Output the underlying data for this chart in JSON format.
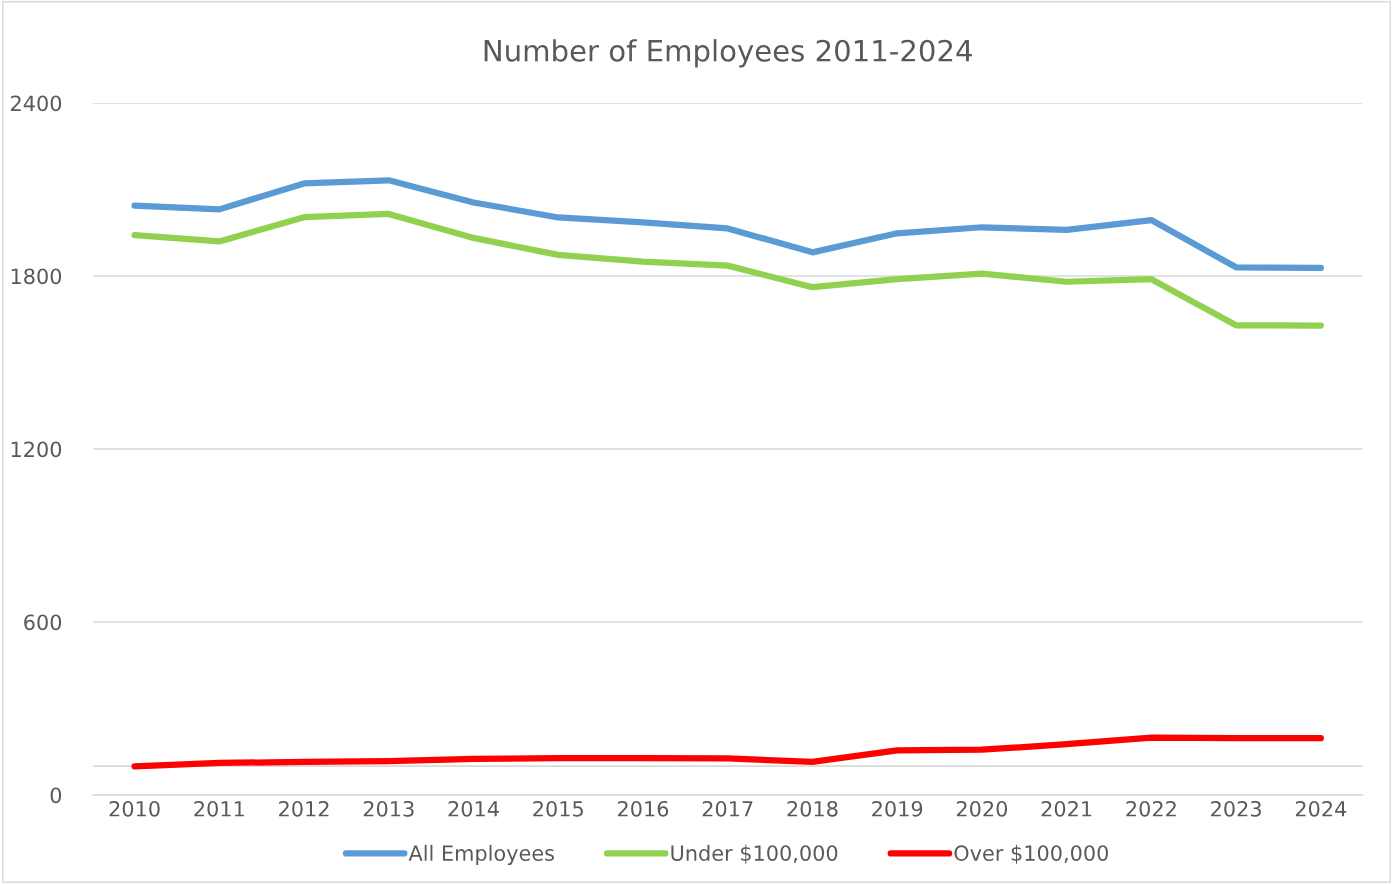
{
  "chart_data": {
    "type": "line",
    "title": "Number of Employees 2011-2024",
    "categories": [
      "2010",
      "2011",
      "2012",
      "2013",
      "2014",
      "2015",
      "2016",
      "2017",
      "2018",
      "2019",
      "2020",
      "2021",
      "2022",
      "2023",
      "2024"
    ],
    "series": [
      {
        "name": "All Employees",
        "color": "#5b9bd5",
        "values": [
          2044,
          2031,
          2121,
          2132,
          2055,
          2003,
          1986,
          1965,
          1882,
          1948,
          1969,
          1960,
          1994,
          1830,
          1828
        ]
      },
      {
        "name": "Under $100,000",
        "color": "#92d050",
        "values": [
          1942,
          1920,
          2004,
          2015,
          1932,
          1873,
          1850,
          1836,
          1761,
          1789,
          1808,
          1780,
          1789,
          1629,
          1628
        ]
      },
      {
        "name": "Over $100,000",
        "color": "#ff0000",
        "values": [
          99,
          111,
          115,
          117,
          125,
          128,
          128,
          127,
          115,
          155,
          157,
          176,
          199,
          197,
          197
        ]
      }
    ],
    "ylim": [
      0,
      2400
    ],
    "yticks": [
      0,
      600,
      1200,
      1800,
      2400
    ],
    "ref_lines": [
      {
        "axis": "y",
        "value": 100,
        "color": "#d9d9d9"
      }
    ],
    "grid": "y",
    "legend": "bottom",
    "marker": "none",
    "line_style": "solid"
  }
}
